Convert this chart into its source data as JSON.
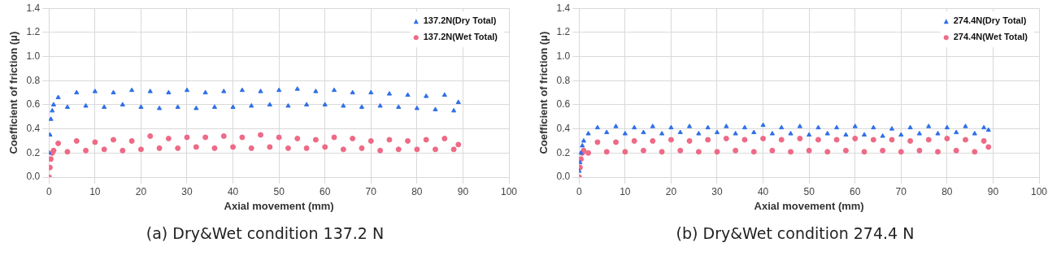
{
  "chart_data": [
    {
      "type": "scatter",
      "title": "(a) Dry&Wet condition 137.2 N",
      "xlabel": "Axial movement (mm)",
      "ylabel": "Coefficient of friction (μ)",
      "xlim": [
        0,
        100
      ],
      "xticks": [
        0,
        10,
        20,
        30,
        40,
        50,
        60,
        70,
        80,
        90,
        100
      ],
      "ylim": [
        0,
        1.4
      ],
      "yticks": [
        {
          "value": 0,
          "label": "0.0"
        },
        {
          "value": 0.2,
          "label": "0.2"
        },
        {
          "value": 0.4,
          "label": "0.4"
        },
        {
          "value": 0.6,
          "label": "0.6"
        },
        {
          "value": 0.8,
          "label": "0.8"
        },
        {
          "value": 1,
          "label": "1.0"
        },
        {
          "value": 1.2,
          "label": "1.2"
        },
        {
          "value": 1.4,
          "label": "1.4"
        }
      ],
      "grid": true,
      "legend": "top right",
      "x": [
        0,
        0.2,
        0.4,
        0.7,
        1,
        2,
        4,
        6,
        8,
        10,
        12,
        14,
        16,
        18,
        20,
        22,
        24,
        26,
        28,
        30,
        32,
        34,
        36,
        38,
        40,
        42,
        44,
        46,
        48,
        50,
        52,
        54,
        56,
        58,
        60,
        62,
        64,
        66,
        68,
        70,
        72,
        74,
        76,
        78,
        80,
        82,
        84,
        86,
        88,
        89
      ],
      "series": [
        {
          "name": "137.2N(Dry Total)",
          "color": "#2f6fe8",
          "marker": "triangle",
          "values": [
            0.2,
            0.35,
            0.48,
            0.55,
            0.6,
            0.66,
            0.58,
            0.7,
            0.59,
            0.71,
            0.58,
            0.7,
            0.6,
            0.72,
            0.58,
            0.71,
            0.57,
            0.7,
            0.58,
            0.72,
            0.57,
            0.7,
            0.58,
            0.71,
            0.58,
            0.72,
            0.59,
            0.71,
            0.6,
            0.72,
            0.59,
            0.73,
            0.6,
            0.71,
            0.6,
            0.72,
            0.59,
            0.7,
            0.58,
            0.7,
            0.59,
            0.69,
            0.58,
            0.68,
            0.57,
            0.67,
            0.56,
            0.68,
            0.55,
            0.62
          ]
        },
        {
          "name": "137.2N(Wet Total)",
          "color": "#ee6a86",
          "marker": "circle",
          "values": [
            0,
            0.08,
            0.15,
            0.2,
            0.22,
            0.28,
            0.21,
            0.3,
            0.22,
            0.29,
            0.23,
            0.31,
            0.22,
            0.3,
            0.23,
            0.34,
            0.24,
            0.32,
            0.24,
            0.33,
            0.25,
            0.33,
            0.24,
            0.34,
            0.25,
            0.33,
            0.24,
            0.35,
            0.25,
            0.33,
            0.24,
            0.32,
            0.24,
            0.31,
            0.25,
            0.33,
            0.23,
            0.32,
            0.24,
            0.3,
            0.22,
            0.31,
            0.23,
            0.3,
            0.23,
            0.31,
            0.23,
            0.32,
            0.23,
            0.27
          ]
        }
      ]
    },
    {
      "type": "scatter",
      "title": "(b) Dry&Wet condition 274.4 N",
      "xlabel": "Axial movement (mm)",
      "ylabel": "Coefficient of friction (μ)",
      "xlim": [
        0,
        100
      ],
      "xticks": [
        0,
        10,
        20,
        30,
        40,
        50,
        60,
        70,
        80,
        90,
        100
      ],
      "ylim": [
        0,
        1.4
      ],
      "yticks": [
        {
          "value": 0,
          "label": "0.0"
        },
        {
          "value": 0.2,
          "label": "0.2"
        },
        {
          "value": 0.4,
          "label": "0.4"
        },
        {
          "value": 0.6,
          "label": "0.6"
        },
        {
          "value": 0.8,
          "label": "0.8"
        },
        {
          "value": 1,
          "label": "1.0"
        },
        {
          "value": 1.2,
          "label": "1.2"
        },
        {
          "value": 1.4,
          "label": "1.4"
        }
      ],
      "grid": true,
      "legend": "top right",
      "x": [
        0,
        0.2,
        0.4,
        0.7,
        1,
        2,
        4,
        6,
        8,
        10,
        12,
        14,
        16,
        18,
        20,
        22,
        24,
        26,
        28,
        30,
        32,
        34,
        36,
        38,
        40,
        42,
        44,
        46,
        48,
        50,
        52,
        54,
        56,
        58,
        60,
        62,
        64,
        66,
        68,
        70,
        72,
        74,
        76,
        78,
        80,
        82,
        84,
        86,
        88,
        89
      ],
      "series": [
        {
          "name": "274.4N(Dry Total)",
          "color": "#2f6fe8",
          "marker": "triangle",
          "values": [
            0.05,
            0.12,
            0.2,
            0.26,
            0.3,
            0.36,
            0.41,
            0.37,
            0.42,
            0.36,
            0.41,
            0.37,
            0.42,
            0.36,
            0.41,
            0.37,
            0.42,
            0.36,
            0.41,
            0.37,
            0.42,
            0.36,
            0.41,
            0.37,
            0.43,
            0.36,
            0.41,
            0.36,
            0.42,
            0.35,
            0.41,
            0.36,
            0.41,
            0.35,
            0.42,
            0.35,
            0.41,
            0.34,
            0.4,
            0.35,
            0.41,
            0.36,
            0.42,
            0.36,
            0.41,
            0.37,
            0.42,
            0.36,
            0.41,
            0.39
          ]
        },
        {
          "name": "274.4N(Wet Total)",
          "color": "#ee6a86",
          "marker": "circle",
          "values": [
            0,
            0.08,
            0.15,
            0.2,
            0.22,
            0.2,
            0.29,
            0.21,
            0.29,
            0.21,
            0.3,
            0.22,
            0.3,
            0.21,
            0.31,
            0.22,
            0.3,
            0.21,
            0.31,
            0.21,
            0.32,
            0.22,
            0.31,
            0.21,
            0.32,
            0.22,
            0.31,
            0.21,
            0.32,
            0.22,
            0.31,
            0.21,
            0.31,
            0.22,
            0.32,
            0.21,
            0.31,
            0.22,
            0.31,
            0.21,
            0.3,
            0.22,
            0.31,
            0.21,
            0.32,
            0.22,
            0.31,
            0.21,
            0.3,
            0.25
          ]
        }
      ]
    }
  ]
}
